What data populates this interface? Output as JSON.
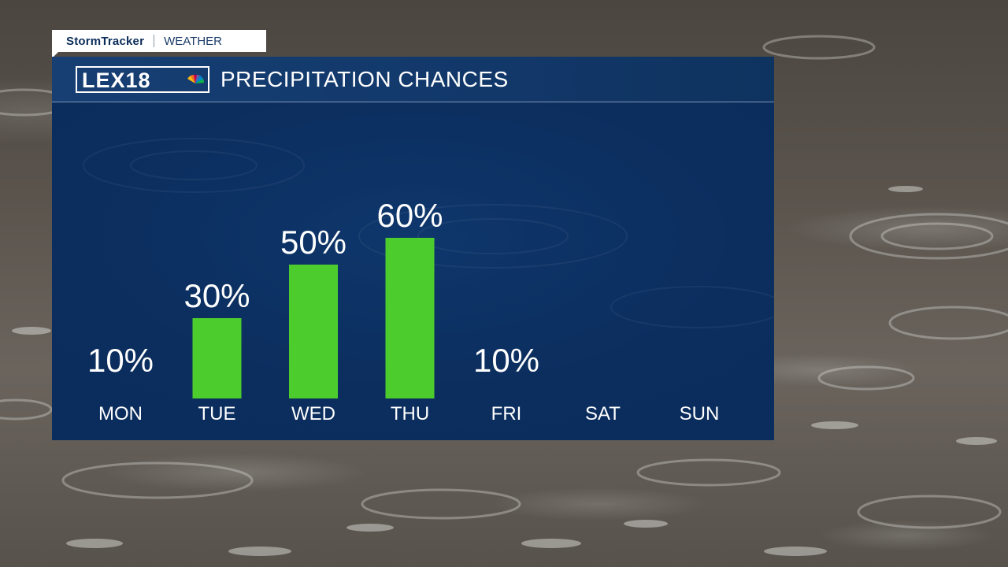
{
  "tag": {
    "brand": "StormTracker",
    "section": "WEATHER"
  },
  "logo": {
    "text": "LEX18"
  },
  "colors": {
    "panel": "#0b2d5d",
    "header": "#143b6e",
    "bar": "#4ccd2d",
    "text": "#ffffff"
  },
  "chart_data": {
    "type": "bar",
    "title": "PRECIPITATION CHANCES",
    "categories": [
      "MON",
      "TUE",
      "WED",
      "THU",
      "FRI",
      "SAT",
      "SUN"
    ],
    "values": [
      10,
      30,
      50,
      60,
      10,
      null,
      null
    ],
    "value_labels": [
      "10%",
      "30%",
      "50%",
      "60%",
      "10%",
      "",
      ""
    ],
    "show_bar": [
      false,
      true,
      true,
      true,
      false,
      false,
      false
    ],
    "unit": "%",
    "ylim": [
      0,
      100
    ],
    "grid": false,
    "legend": "none"
  }
}
